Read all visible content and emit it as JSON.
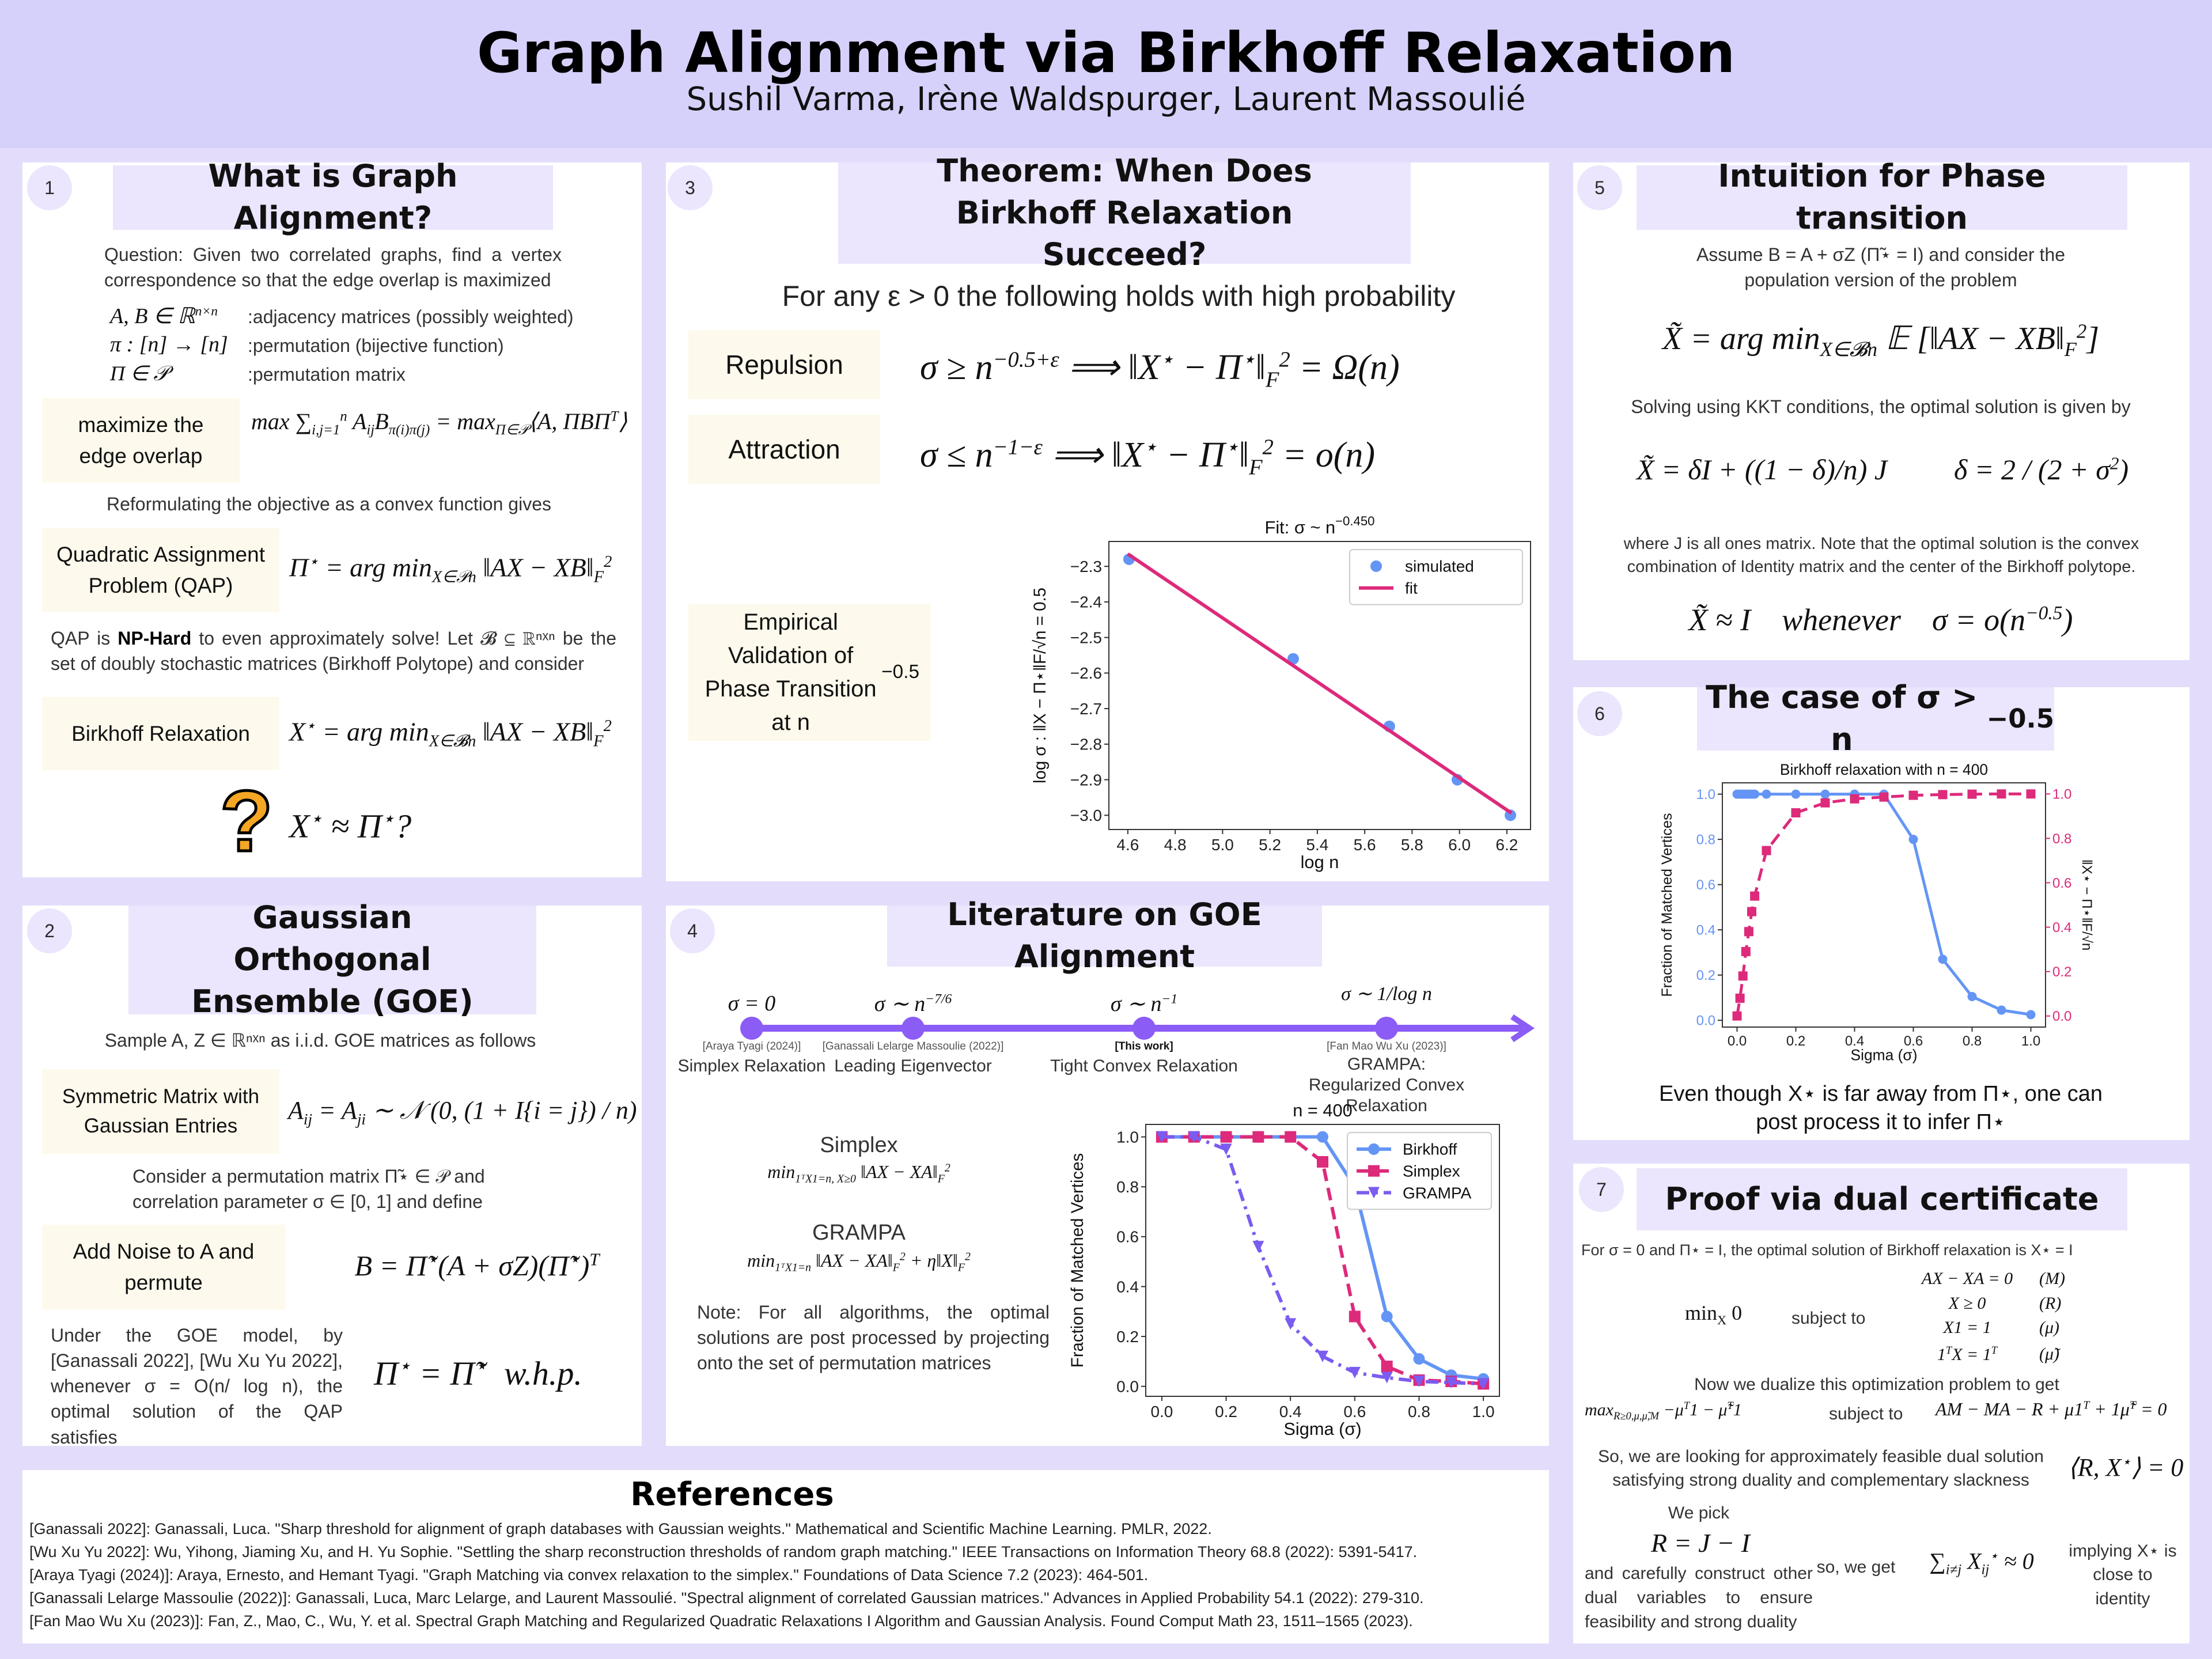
{
  "header": {
    "title": "Graph Alignment via Birkhoff Relaxation",
    "authors": "Sushil Varma, Irène Waldspurger, Laurent Massoulié"
  },
  "p1": {
    "num": "1",
    "title": "What is Graph Alignment?",
    "question": "Question: Given two correlated graphs, find a vertex correspondence so that the edge overlap is maximized",
    "defs": [
      {
        "math": "A, B ∈ ℝ^{n×n}",
        "desc": ":adjacency matrices (possibly weighted)"
      },
      {
        "math": "π : [n] → [n]",
        "desc": ":permutation (bijective function)"
      },
      {
        "math": "Π ∈ 𝒫",
        "desc": ":permutation matrix"
      }
    ],
    "box_overlap": "maximize the edge overlap",
    "f_overlap": "max ∑_{i,j=1}^{n} A_{ij}B_{π(i)π(j)} = max_{Π∈𝒫}⟨A, ΠBΠ^{T}⟩",
    "reformulate": "Reformulating the objective as a convex function gives",
    "box_qap": "Quadratic Assignment Problem (QAP)",
    "f_qap": "Π^{⋆} = arg min_{X∈𝒫n} ‖AX − XB‖_{F}^{2}",
    "np_pre": "QAP is ",
    "np_bold": "NP-Hard",
    "np_post": " to even approximately solve! Let  𝓑 ⊆ ℝⁿˣⁿ be the set of doubly stochastic matrices (Birkhoff Polytope) and consider",
    "box_birkhoff": "Birkhoff Relaxation",
    "f_birkhoff": "X^{⋆} = arg min_{X∈𝓑n} ‖AX − XB‖_{F}^{2}",
    "question_formula": "X^{⋆} ≈ Π^{⋆}?"
  },
  "p2": {
    "num": "2",
    "title": "Gaussian Orthogonal Ensemble (GOE)",
    "sample": "Sample A, Z ∈ ℝⁿˣⁿ  as i.i.d. GOE matrices as follows",
    "box_sym": "Symmetric Matrix with Gaussian Entries",
    "f_sym": "A_{ij} = A_{ji} ∼ 𝒩 (0, (1 + I{i = j}) / n)",
    "consider": "Consider a permutation matrix  Π̃⋆ ∈ 𝒫 and correlation parameter σ ∈ [0, 1] and define",
    "box_noise": "Add Noise to A and permute",
    "f_noise": "B = Π̃^{⋆}(A + σZ)(Π̃^{⋆})^{T}",
    "under": "Under the GOE model, by [Ganassali 2022], [Wu Xu Yu 2022], whenever σ = O(n/ log n), the optimal solution of the QAP satisfies",
    "f_whp": "Π^{⋆} = Π̃^{⋆}  w.h.p."
  },
  "p3": {
    "num": "3",
    "title": "Theorem: When Does Birkhoff Relaxation Succeed?",
    "for_any": "For any ε > 0  the following holds with high probability",
    "box_rep": "Repulsion",
    "f_rep": "σ ≥ n^{−0.5+ε}  ⟹  ‖X^{⋆} − Π^{⋆}‖_{F}^{2} = Ω(n)",
    "box_att": "Attraction",
    "f_att": "σ ≤ n^{−1−ε}  ⟹  ‖X^{⋆} − Π^{⋆}‖_{F}^{2} = o(n)",
    "box_emp": "Empirical Validation of Phase Transition at n^{−0.5}"
  },
  "p4": {
    "num": "4",
    "title": "Literature on GOE Alignment",
    "timeline": [
      {
        "math": "σ = 0",
        "ref": "[Araya Tyagi (2024)]",
        "label": "Simplex Relaxation",
        "bold": false
      },
      {
        "math": "σ ∼ n^{−7/6}",
        "ref": "[Ganassali Lelarge Massoulie (2022)]",
        "label": "Leading Eigenvector",
        "bold": false
      },
      {
        "math": "σ ∼ n^{−1}",
        "ref": "[This work]",
        "label": "Tight Convex Relaxation",
        "bold": true
      },
      {
        "math": "σ ∼ 1/log n",
        "ref": "[Fan Mao Wu Xu (2023)]",
        "label": "GRAMPA: Regularized Convex Relaxation",
        "bold": false
      }
    ],
    "simplex_label": "Simplex",
    "f_simplex": "min_{1ᵀX1=n, X≥0} ‖AX − XA‖_{F}^{2}",
    "grampa_label": "GRAMPA",
    "f_grampa": "min_{1ᵀX1=n} ‖AX − XA‖_{F}^{2} + η‖X‖_{F}^{2}",
    "note": "Note: For all algorithms, the optimal solutions are post processed by projecting onto the set of permutation matrices"
  },
  "p5": {
    "num": "5",
    "title": "Intuition for Phase transition",
    "assume": "Assume B = A + σZ   (Π̃⋆ = I)  and consider the population version of the problem",
    "f_pop": "X̃ = arg min_{X∈𝓑n} 𝔼 [‖AX − XB‖_{F}^{2}]",
    "kkt": "Solving using KKT conditions, the optimal solution is given by",
    "f_sol": "X̃ = δI + ((1 − δ)/n) J",
    "f_delta": "δ = 2 / (2 + σ^{2})",
    "where": "where  J  is all ones matrix. Note that the optimal solution is the convex combination of Identity matrix and the center of the Birkhoff polytope.",
    "f_whenever": "X̃ ≈ I    whenever    σ = o(n^{−0.5})"
  },
  "p6": {
    "num": "6",
    "title": "The case of σ > n^{−0.5}",
    "caption": "Even though X⋆ is far away from Π⋆,  one can post process it to infer Π⋆"
  },
  "p7": {
    "num": "7",
    "title": "Proof via dual certificate",
    "intro": "For σ = 0 and Π⋆ = I, the optimal solution of Birkhoff relaxation is X⋆ = I",
    "primal_obj": "min_{X} 0",
    "subject_to": "subject to",
    "constraints": [
      {
        "eq": "AX − XA = 0",
        "var": "(M)"
      },
      {
        "eq": "X ≥ 0",
        "var": "(R)"
      },
      {
        "eq": "X1 = 1",
        "var": "(μ)"
      },
      {
        "eq": "1^{T}X = 1^{T}",
        "var": "(μ̃)"
      }
    ],
    "dualize": "Now we dualize this optimization problem to get",
    "dual_obj": "max_{R≥0,μ,μ̃,M} −μ^{T}1 − μ̃^{T}1",
    "dual_subject": "subject to",
    "dual_eq": "AM − MA − R + μ1^{T} + 1μ̃^{T} = 0",
    "looking": "So, we are looking for approximately feasible dual solution satisfying strong duality and complementary slackness",
    "slack": "⟨R, X^{⋆}⟩ = 0",
    "we_pick": "We pick",
    "f_pick": "R = J − I",
    "carefully": "and carefully construct other dual variables to ensure feasibility and strong duality",
    "so_we_get": "so, we get",
    "f_sum": "∑_{i≠j} X_{ij}^{⋆} ≈ 0",
    "implying": "implying X⋆ is close to identity"
  },
  "references": {
    "title": "References",
    "items": [
      "[Ganassali 2022]: Ganassali, Luca. \"Sharp threshold for alignment of graph databases with Gaussian weights.\" Mathematical and Scientific Machine Learning. PMLR, 2022.",
      "[Wu Xu Yu 2022]: Wu, Yihong, Jiaming Xu, and H. Yu Sophie. \"Settling the sharp reconstruction thresholds of random graph matching.\" IEEE Transactions on Information Theory 68.8 (2022): 5391-5417.",
      "[Araya Tyagi (2024)]: Araya, Ernesto, and Hemant Tyagi. \"Graph Matching via convex relaxation to the simplex.\" Foundations of Data Science 7.2 (2023): 464-501.",
      "[Ganassali Lelarge Massoulie (2022)]: Ganassali, Luca, Marc Lelarge, and Laurent Massoulié. \"Spectral alignment of correlated Gaussian matrices.\" Advances in Applied Probability 54.1 (2022): 279-310.",
      "[Fan Mao Wu Xu (2023)]: Fan, Z., Mao, C., Wu, Y. et al. Spectral Graph Matching and Regularized Quadratic Relaxations I Algorithm and Gaussian Analysis. Found Comput Math 23, 1511–1565 (2023)."
    ]
  },
  "colors": {
    "blue": "#6495f5",
    "pink": "#dd2a7b",
    "purple": "#7b5cf0",
    "timeline": "#8b5cf6",
    "accent_orange": "#f5a623"
  },
  "icons": {
    "question": "question-mark-icon"
  },
  "chart_data": [
    {
      "id": "fit",
      "type": "scatter",
      "title": "Fit: σ ~ n^{−0.450}",
      "xlabel": "log n",
      "ylabel": "log σ : ‖X − Π⋆‖F/√n = 0.5",
      "xlim": [
        4.52,
        6.3
      ],
      "ylim": [
        -3.04,
        -2.23
      ],
      "xticks": [
        4.6,
        4.8,
        5.0,
        5.2,
        5.4,
        5.6,
        5.8,
        6.0,
        6.2
      ],
      "yticks": [
        -3.0,
        -2.9,
        -2.8,
        -2.7,
        -2.6,
        -2.5,
        -2.4,
        -2.3
      ],
      "grid": false,
      "legend": "top-right",
      "series": [
        {
          "name": "simulated",
          "color": "#6495f5",
          "linestyle": "none",
          "marker": "circle",
          "x": [
            4.605,
            5.298,
            5.704,
            5.991,
            6.215
          ],
          "y": [
            -2.28,
            -2.56,
            -2.75,
            -2.9,
            -3.0
          ]
        },
        {
          "name": "fit",
          "color": "#dd2a7b",
          "linestyle": "solid",
          "marker": "none",
          "x": [
            4.6,
            6.22
          ],
          "y": [
            -2.265,
            -2.994
          ]
        }
      ]
    },
    {
      "id": "compare",
      "type": "line",
      "title": "n = 400",
      "xlabel": "Sigma (σ)",
      "ylabel": "Fraction of Matched Vertices",
      "xlim": [
        -0.05,
        1.05
      ],
      "ylim": [
        -0.04,
        1.05
      ],
      "xticks": [
        0.0,
        0.2,
        0.4,
        0.6,
        0.8,
        1.0
      ],
      "yticks": [
        0.0,
        0.2,
        0.4,
        0.6,
        0.8,
        1.0
      ],
      "grid": false,
      "legend": "top-right",
      "series": [
        {
          "name": "Birkhoff",
          "color": "#6495f5",
          "linestyle": "solid",
          "marker": "circle",
          "x": [
            0,
            0.1,
            0.2,
            0.3,
            0.4,
            0.5,
            0.6,
            0.7,
            0.8,
            0.9,
            1.0
          ],
          "y": [
            1,
            1,
            1,
            1,
            1,
            1,
            0.8,
            0.28,
            0.11,
            0.045,
            0.03
          ]
        },
        {
          "name": "Simplex",
          "color": "#dd2a7b",
          "linestyle": "dashed",
          "marker": "square",
          "x": [
            0,
            0.1,
            0.2,
            0.3,
            0.4,
            0.5,
            0.6,
            0.7,
            0.8,
            0.9,
            1.0
          ],
          "y": [
            1,
            1,
            1,
            1,
            1,
            0.9,
            0.28,
            0.08,
            0.025,
            0.02,
            0.01
          ]
        },
        {
          "name": "GRAMPA",
          "color": "#7b5cf0",
          "linestyle": "dashdot",
          "marker": "triangle-down",
          "x": [
            0,
            0.1,
            0.2,
            0.3,
            0.4,
            0.5,
            0.6,
            0.7,
            0.8,
            0.9,
            1.0
          ],
          "y": [
            1,
            1,
            0.95,
            0.56,
            0.25,
            0.12,
            0.055,
            0.035,
            0.02,
            0.015,
            0.01
          ]
        }
      ]
    },
    {
      "id": "case",
      "type": "line",
      "title": "Birkhoff relaxation with n = 400",
      "xlabel": "Sigma (σ)",
      "ylabel": "Fraction of Matched Vertices",
      "y2label": "‖X⋆ − Π⋆‖F/√n",
      "xlim": [
        -0.05,
        1.05
      ],
      "ylim": [
        -0.03,
        1.05
      ],
      "y2lim": [
        -0.05,
        1.05
      ],
      "xticks": [
        0.0,
        0.2,
        0.4,
        0.6,
        0.8,
        1.0
      ],
      "yticks": [
        0.0,
        0.2,
        0.4,
        0.6,
        0.8,
        1.0
      ],
      "y2ticks": [
        0.0,
        0.2,
        0.4,
        0.6,
        0.8,
        1.0
      ],
      "ytick_color": "#6495f5",
      "y2tick_color": "#dd2a7b",
      "grid": false,
      "legend": "none",
      "series": [
        {
          "name": "",
          "axis": "left",
          "color": "#6495f5",
          "linestyle": "solid",
          "marker": "circle",
          "x": [
            0,
            0.01,
            0.02,
            0.03,
            0.04,
            0.05,
            0.06,
            0.1,
            0.2,
            0.3,
            0.4,
            0.5,
            0.6,
            0.7,
            0.8,
            0.9,
            1.0
          ],
          "y": [
            1,
            1,
            1,
            1,
            1,
            1,
            1,
            1,
            1,
            1,
            1,
            1,
            0.8,
            0.27,
            0.105,
            0.045,
            0.025
          ]
        },
        {
          "name": "",
          "axis": "right",
          "color": "#dd2a7b",
          "linestyle": "dashed",
          "marker": "square",
          "x": [
            0,
            0.01,
            0.02,
            0.03,
            0.04,
            0.05,
            0.06,
            0.1,
            0.2,
            0.3,
            0.4,
            0.5,
            0.6,
            0.7,
            0.8,
            0.9,
            1.0
          ],
          "y": [
            0.0,
            0.08,
            0.18,
            0.29,
            0.38,
            0.47,
            0.54,
            0.745,
            0.915,
            0.96,
            0.978,
            0.986,
            0.994,
            0.997,
            0.999,
            1.0,
            1.0
          ]
        }
      ]
    }
  ]
}
